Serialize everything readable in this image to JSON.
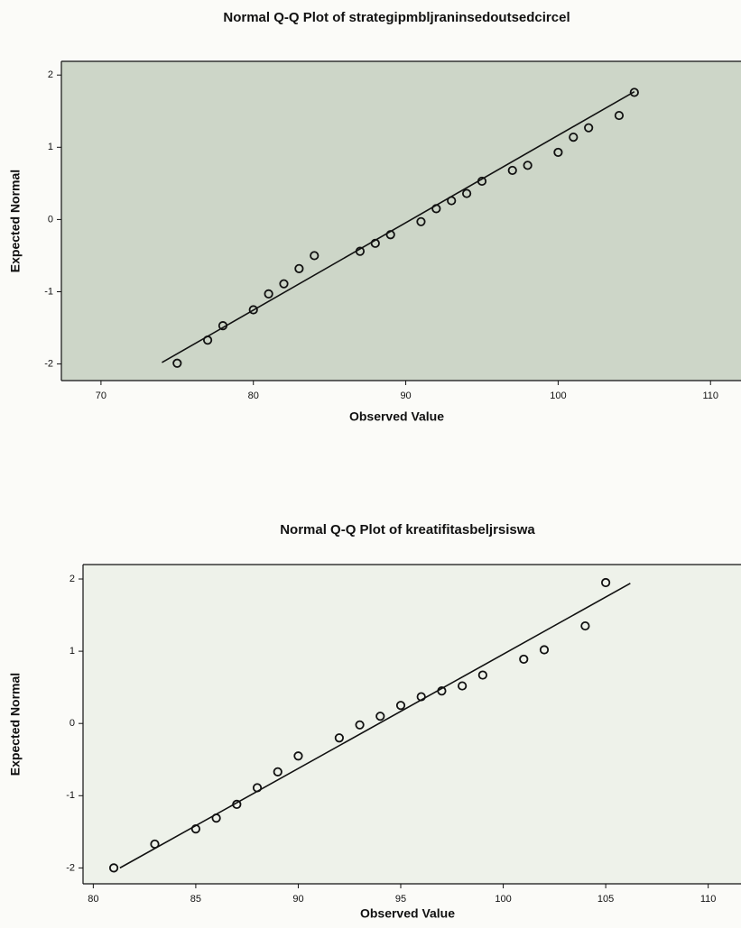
{
  "chart_data": [
    {
      "type": "scatter",
      "title": "Normal Q-Q Plot of strategipmbljraninsedoutsedcircel",
      "x_label": "Observed Value",
      "y_label": "Expected Normal",
      "x": [
        75,
        77,
        78,
        80,
        81,
        82,
        83,
        84,
        87,
        88,
        89,
        91,
        92,
        93,
        94,
        95,
        97,
        98,
        100,
        101,
        102,
        104,
        105
      ],
      "values": [
        -1.99,
        -1.67,
        -1.47,
        -1.25,
        -1.03,
        -0.89,
        -0.68,
        -0.5,
        -0.44,
        -0.33,
        -0.21,
        -0.03,
        0.15,
        0.26,
        0.36,
        0.53,
        0.68,
        0.75,
        0.93,
        1.14,
        1.27,
        1.44,
        1.76
      ],
      "fit_line": {
        "x": [
          74,
          105
        ],
        "y": [
          -1.98,
          1.77
        ]
      },
      "xlim": [
        67.4,
        112
      ],
      "ylim": [
        -2.23,
        2.19
      ],
      "xticks": [
        70,
        80,
        90,
        100,
        110
      ],
      "yticks": [
        -2,
        -1,
        0,
        1,
        2
      ],
      "color": "#111111",
      "background": "#cdd6c8"
    },
    {
      "type": "scatter",
      "title": "Normal Q-Q Plot of kreatifitasbeljrsiswa",
      "x_label": "Observed Value",
      "y_label": "Expected Normal",
      "x": [
        81,
        83,
        85,
        86,
        87,
        88,
        89,
        90,
        92,
        93,
        94,
        95,
        96,
        97,
        98,
        99,
        101,
        102,
        104,
        105
      ],
      "values": [
        -2.0,
        -1.67,
        -1.46,
        -1.31,
        -1.12,
        -0.89,
        -0.67,
        -0.45,
        -0.2,
        -0.02,
        0.1,
        0.25,
        0.37,
        0.45,
        0.52,
        0.67,
        0.89,
        1.02,
        1.35,
        1.95
      ],
      "fit_line": {
        "x": [
          81.3,
          106.2
        ],
        "y": [
          -2.0,
          1.94
        ]
      },
      "xlim": [
        79.5,
        111.6
      ],
      "ylim": [
        -2.22,
        2.2
      ],
      "xticks": [
        80,
        85,
        90,
        95,
        100,
        105,
        110
      ],
      "yticks": [
        -2,
        -1,
        0,
        1,
        2
      ],
      "color": "#111111",
      "background": "#eef2ea"
    }
  ]
}
